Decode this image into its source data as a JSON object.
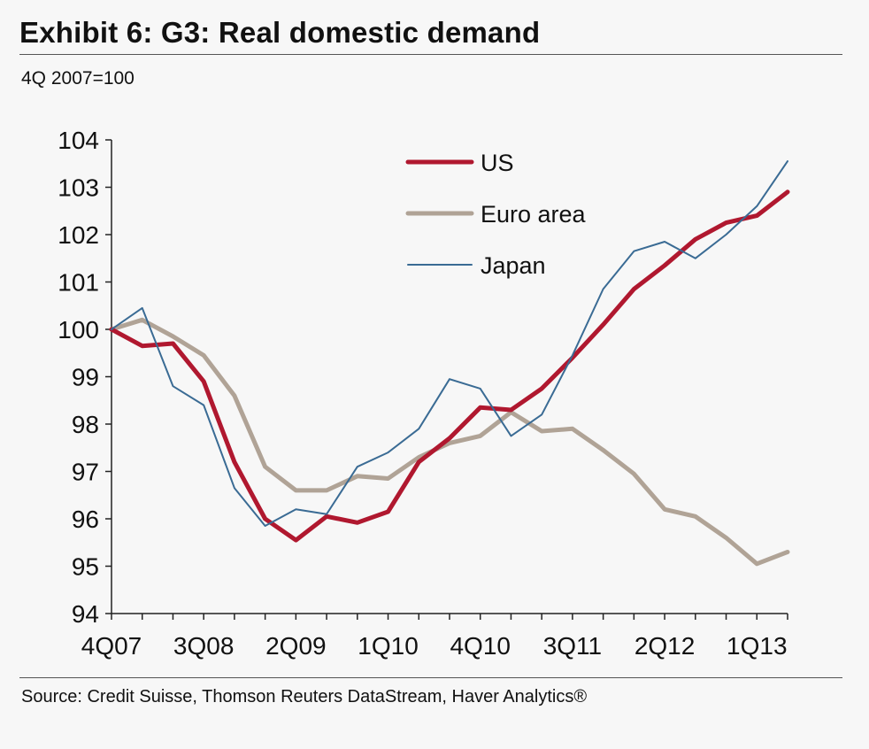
{
  "header": {
    "title": "Exhibit 6: G3: Real domestic demand",
    "subtitle": "4Q 2007=100"
  },
  "footer": {
    "source": "Source: Credit Suisse, Thomson Reuters DataStream, Haver Analytics®"
  },
  "chart_data": {
    "type": "line",
    "title": "Exhibit 6: G3: Real domestic demand",
    "subtitle": "4Q 2007=100",
    "xlabel": "",
    "ylabel": "",
    "ylim": [
      94,
      104
    ],
    "yticks": [
      94,
      95,
      96,
      97,
      98,
      99,
      100,
      101,
      102,
      103,
      104
    ],
    "x": [
      "4Q07",
      "1Q08",
      "2Q08",
      "3Q08",
      "4Q08",
      "1Q09",
      "2Q09",
      "3Q09",
      "4Q09",
      "1Q10",
      "2Q10",
      "3Q10",
      "4Q10",
      "1Q11",
      "2Q11",
      "3Q11",
      "4Q11",
      "1Q12",
      "2Q12",
      "3Q12",
      "4Q12",
      "1Q13",
      "2Q13"
    ],
    "xtick_labels": [
      "4Q07",
      "3Q08",
      "2Q09",
      "1Q10",
      "4Q10",
      "3Q11",
      "2Q12",
      "1Q13"
    ],
    "grid": false,
    "legend_position": "top",
    "series": [
      {
        "name": "US",
        "color": "#b0182f",
        "values": [
          100.0,
          99.65,
          99.7,
          98.9,
          97.2,
          96.0,
          95.55,
          96.05,
          95.92,
          96.15,
          97.2,
          97.7,
          98.35,
          98.3,
          98.75,
          99.4,
          100.1,
          100.85,
          101.35,
          101.9,
          102.25,
          102.4,
          102.9
        ]
      },
      {
        "name": "Euro area",
        "color": "#b0a396",
        "values": [
          100.0,
          100.2,
          99.85,
          99.45,
          98.6,
          97.1,
          96.6,
          96.6,
          96.9,
          96.85,
          97.3,
          97.6,
          97.75,
          98.25,
          97.85,
          97.9,
          97.45,
          96.95,
          96.2,
          96.05,
          95.6,
          95.05,
          95.3
        ]
      },
      {
        "name": "Japan",
        "color": "#3a6b94",
        "values": [
          100.0,
          100.45,
          98.8,
          98.4,
          96.65,
          95.85,
          96.2,
          96.1,
          97.1,
          97.4,
          97.9,
          98.95,
          98.75,
          97.75,
          98.2,
          99.45,
          100.85,
          101.65,
          101.85,
          101.5,
          102.0,
          102.6,
          103.55
        ]
      }
    ]
  }
}
